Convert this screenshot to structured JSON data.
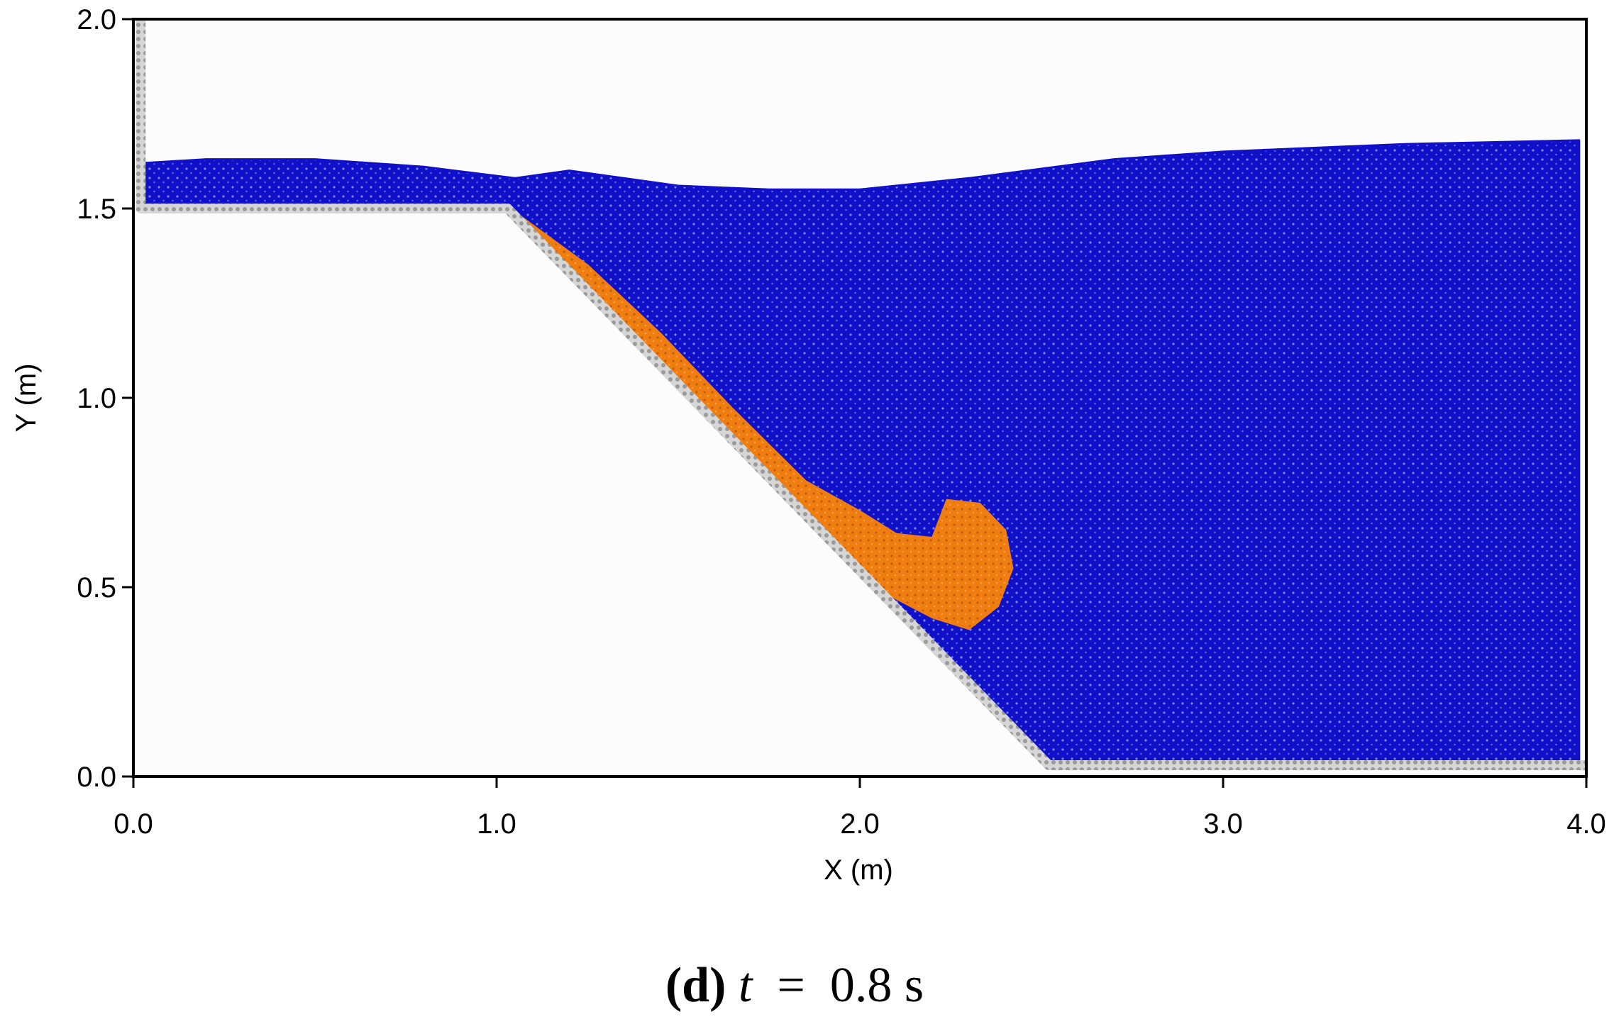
{
  "chart_data": {
    "type": "scatter",
    "title": "",
    "xlabel": "X (m)",
    "ylabel": "Y (m)",
    "xlim": [
      0.0,
      4.0
    ],
    "ylim": [
      0.0,
      2.0
    ],
    "xticks": [
      "0.0",
      "1.0",
      "2.0",
      "3.0",
      "4.0"
    ],
    "yticks": [
      "0.0",
      "0.5",
      "1.0",
      "1.5",
      "2.0"
    ],
    "grid": false,
    "colors": {
      "water": "#1010c8",
      "slide": "#f07d10",
      "boundary": "#b4b4b4",
      "background": "#fcfcfc"
    },
    "series": [
      {
        "kind": "boundary",
        "points": [
          [
            0.02,
            2.0
          ],
          [
            0.02,
            1.5
          ],
          [
            1.03,
            1.5
          ],
          [
            2.52,
            0.03
          ],
          [
            4.0,
            0.03
          ]
        ]
      },
      {
        "kind": "water",
        "points": [
          [
            0.03,
            1.51
          ],
          [
            0.03,
            1.62
          ],
          [
            0.2,
            1.63
          ],
          [
            0.5,
            1.63
          ],
          [
            0.8,
            1.61
          ],
          [
            1.05,
            1.58
          ],
          [
            1.2,
            1.6
          ],
          [
            1.5,
            1.56
          ],
          [
            1.75,
            1.55
          ],
          [
            2.0,
            1.55
          ],
          [
            2.3,
            1.58
          ],
          [
            2.7,
            1.63
          ],
          [
            3.0,
            1.65
          ],
          [
            3.5,
            1.67
          ],
          [
            3.98,
            1.68
          ],
          [
            3.98,
            0.04
          ],
          [
            2.52,
            0.04
          ],
          [
            1.05,
            1.5
          ]
        ]
      },
      {
        "kind": "slide",
        "points": [
          [
            1.05,
            1.49
          ],
          [
            1.25,
            1.35
          ],
          [
            1.45,
            1.17
          ],
          [
            1.65,
            0.97
          ],
          [
            1.85,
            0.78
          ],
          [
            2.0,
            0.7
          ],
          [
            2.1,
            0.64
          ],
          [
            2.2,
            0.63
          ],
          [
            2.24,
            0.73
          ],
          [
            2.33,
            0.72
          ],
          [
            2.4,
            0.65
          ],
          [
            2.42,
            0.55
          ],
          [
            2.38,
            0.45
          ],
          [
            2.3,
            0.39
          ],
          [
            2.2,
            0.42
          ],
          [
            2.1,
            0.47
          ],
          [
            2.0,
            0.53
          ],
          [
            1.85,
            0.68
          ],
          [
            1.65,
            0.9
          ],
          [
            1.45,
            1.1
          ],
          [
            1.25,
            1.3
          ]
        ]
      }
    ]
  },
  "caption": {
    "label": "(d)",
    "variable": "t",
    "equals": " = ",
    "value": "0.8 s"
  }
}
